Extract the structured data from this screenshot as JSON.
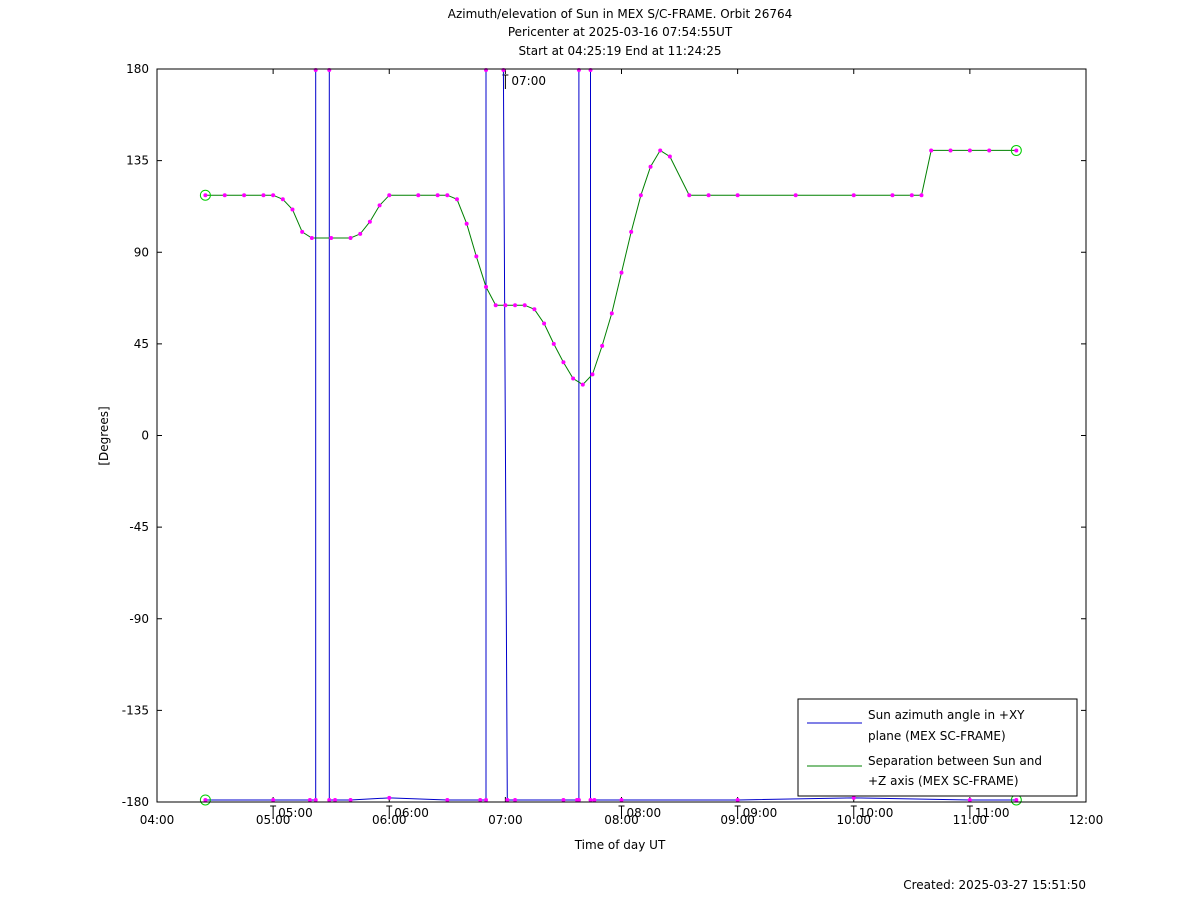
{
  "chart_data": {
    "type": "line",
    "title": "Azimuth/elevation of Sun in MEX S/C-FRAME.  Orbit 26764",
    "subtitle_lines": [
      "Pericenter at 2025-03-16 07:54:55UT",
      "Start at 04:25:19 End at 11:24:25"
    ],
    "xlabel": "Time of day UT",
    "ylabel": "[Degrees]",
    "xlim": [
      "04:00",
      "12:00"
    ],
    "ylim": [
      -180,
      180
    ],
    "x_ticks": [
      "04:00",
      "05:00",
      "06:00",
      "07:00",
      "08:00",
      "09:00",
      "10:00",
      "11:00",
      "12:00"
    ],
    "y_ticks": [
      180,
      135,
      90,
      45,
      0,
      -45,
      -90,
      -135,
      -180
    ],
    "hour_markers": [
      {
        "time": "05:00",
        "label": "05:00",
        "at": "bottom"
      },
      {
        "time": "06:00",
        "label": "06:00",
        "at": "bottom"
      },
      {
        "time": "07:00",
        "label": "07:00",
        "at": "top"
      },
      {
        "time": "08:00",
        "label": "08:00",
        "at": "bottom"
      },
      {
        "time": "09:00",
        "label": "09:00",
        "at": "bottom"
      },
      {
        "time": "10:00",
        "label": "10:00",
        "at": "bottom"
      },
      {
        "time": "11:00",
        "label": "11:00",
        "at": "bottom"
      }
    ],
    "legend_position": "bottom-right",
    "series": [
      {
        "name": "Sun azimuth angle in +XY plane (MEX SC-FRAME)",
        "legend_lines": [
          "Sun azimuth angle in +XY",
          "plane (MEX SC-FRAME)"
        ],
        "color": "#0000cc",
        "x": [
          "04:25",
          "05:00",
          "05:19",
          "05:22",
          "05:22",
          "05:29",
          "05:29",
          "05:32",
          "05:40",
          "06:00",
          "06:30",
          "06:47",
          "06:50",
          "06:50",
          "06:59",
          "07:01",
          "07:05",
          "07:30",
          "07:37",
          "07:38",
          "07:38",
          "07:44",
          "07:44",
          "07:46",
          "08:00",
          "09:00",
          "10:00",
          "11:00",
          "11:24"
        ],
        "y": [
          -179,
          -179,
          -179,
          -179,
          180,
          180,
          -179,
          -179,
          -179,
          -178,
          -179,
          -179,
          -179,
          180,
          180,
          -179,
          -179,
          -179,
          -179,
          -179,
          180,
          180,
          -179,
          -179,
          -179,
          -179,
          -178,
          -179,
          -179
        ]
      },
      {
        "name": "Separation between Sun and +Z axis (MEX SC-FRAME)",
        "legend_lines": [
          "Separation between Sun and",
          "+Z axis (MEX SC-FRAME)"
        ],
        "color": "#008000",
        "x": [
          "04:25",
          "04:35",
          "04:45",
          "04:55",
          "05:00",
          "05:05",
          "05:10",
          "05:15",
          "05:20",
          "05:30",
          "05:40",
          "05:45",
          "05:50",
          "05:55",
          "06:00",
          "06:15",
          "06:25",
          "06:30",
          "06:35",
          "06:40",
          "06:45",
          "06:50",
          "06:55",
          "07:00",
          "07:05",
          "07:10",
          "07:15",
          "07:20",
          "07:25",
          "07:30",
          "07:35",
          "07:40",
          "07:45",
          "07:50",
          "07:55",
          "08:00",
          "08:05",
          "08:10",
          "08:15",
          "08:20",
          "08:25",
          "08:35",
          "08:45",
          "09:00",
          "09:30",
          "10:00",
          "10:20",
          "10:30",
          "10:35",
          "10:40",
          "10:50",
          "11:00",
          "11:10",
          "11:24"
        ],
        "y": [
          118,
          118,
          118,
          118,
          118,
          116,
          111,
          100,
          97,
          97,
          97,
          99,
          105,
          113,
          118,
          118,
          118,
          118,
          116,
          104,
          88,
          73,
          64,
          64,
          64,
          64,
          62,
          55,
          45,
          36,
          28,
          25,
          30,
          44,
          60,
          80,
          100,
          118,
          132,
          140,
          137,
          118,
          118,
          118,
          118,
          118,
          118,
          118,
          118,
          140,
          140,
          140,
          140,
          140
        ]
      }
    ]
  },
  "footer": {
    "created": "Created: 2025-03-27 15:51:50"
  }
}
